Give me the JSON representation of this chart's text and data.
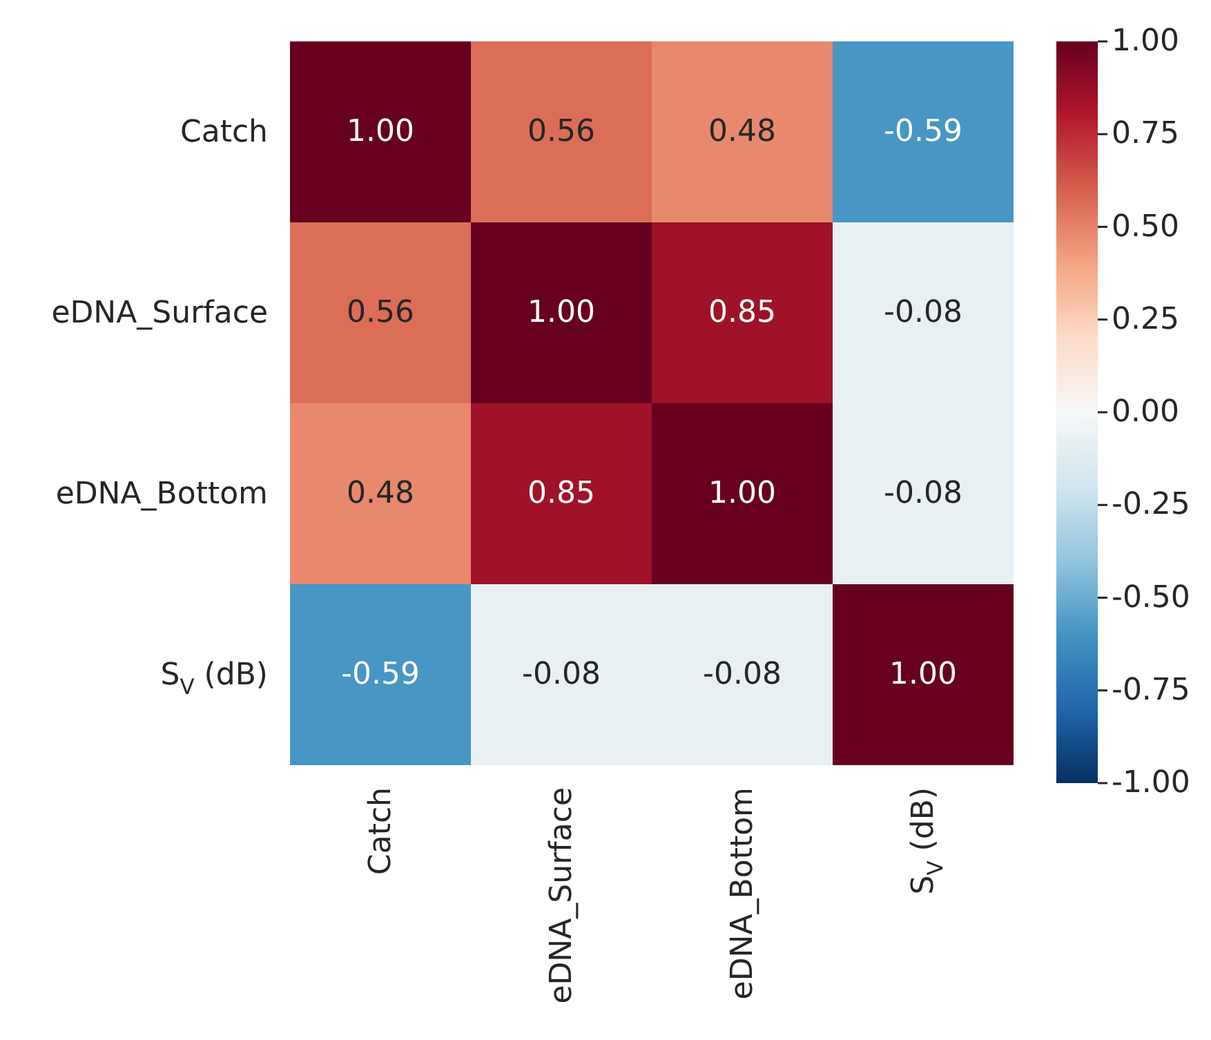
{
  "chart_data": {
    "type": "heatmap",
    "categories": [
      "Catch",
      "eDNA_Surface",
      "eDNA_Bottom",
      "S$_{V}$ (dB)"
    ],
    "y_categories": [
      "Catch",
      "eDNA_Surface",
      "eDNA_Bottom",
      "S$_{V}$ (dB)"
    ],
    "cells": [
      [
        1.0,
        0.56,
        0.48,
        -0.59
      ],
      [
        0.56,
        1.0,
        0.85,
        -0.08
      ],
      [
        0.48,
        0.85,
        1.0,
        -0.08
      ],
      [
        -0.59,
        -0.08,
        -0.08,
        1.0
      ]
    ],
    "clim": [
      -1,
      1
    ],
    "cticks": [
      {
        "value": -1,
        "label": "-1.00"
      },
      {
        "value": -0.75,
        "label": "-0.75"
      },
      {
        "value": -0.5,
        "label": "-0.50"
      },
      {
        "value": -0.25,
        "label": "-0.25"
      },
      {
        "value": 0,
        "label": "0.00"
      },
      {
        "value": 0.25,
        "label": "0.25"
      },
      {
        "value": 0.5,
        "label": "0.50"
      },
      {
        "value": 0.75,
        "label": "0.75"
      },
      {
        "value": 1,
        "label": "1.00"
      }
    ],
    "cell_labels": [
      [
        "1.00",
        "0.56",
        "0.48",
        "-0.59"
      ],
      [
        "0.56",
        "1.00",
        "0.85",
        "-0.08"
      ],
      [
        "0.48",
        "0.85",
        "1.00",
        "-0.08"
      ],
      [
        "-0.59",
        "-0.08",
        "-0.08",
        "1.00"
      ]
    ]
  }
}
